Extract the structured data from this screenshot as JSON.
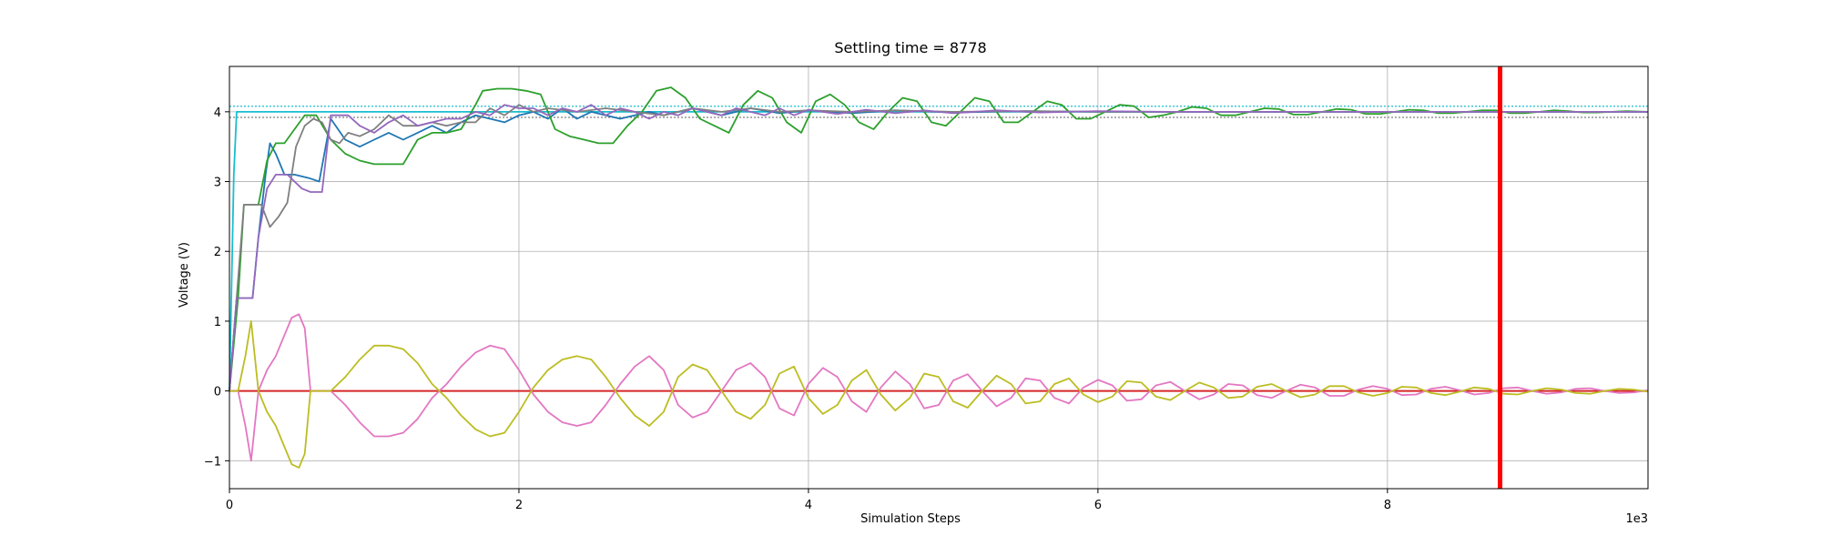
{
  "chart_data": {
    "type": "line",
    "title": "Settling time = 8778",
    "xlabel": "Simulation Steps",
    "ylabel": "Voltage (V)",
    "x_offset_label": "1e3",
    "xlim": [
      0,
      9800
    ],
    "ylim": [
      -1.4,
      4.65
    ],
    "xticks": [
      0,
      2,
      4,
      6,
      8
    ],
    "yticks": [
      -1,
      0,
      1,
      2,
      3,
      4
    ],
    "grid": true,
    "vertical_marker": {
      "x": 8778,
      "color": "#ff0000"
    },
    "reference_lines": [
      {
        "y": 4.08,
        "style": "dotted",
        "color": "#17becf"
      },
      {
        "y": 3.92,
        "style": "dotted",
        "color": "#7f7f7f"
      },
      {
        "y": 0.0,
        "style": "solid",
        "color": "#d62728"
      }
    ],
    "series": [
      {
        "color": "#17becf",
        "x": [
          0,
          30,
          50,
          9800
        ],
        "y": [
          0,
          3.1,
          4.0,
          4.0
        ]
      },
      {
        "color": "#1f77b4",
        "x": [
          0,
          50,
          90,
          160,
          200,
          250,
          280,
          320,
          380,
          450,
          550,
          620,
          700,
          800,
          900,
          1000,
          1100,
          1200,
          1300,
          1400,
          1500,
          1600,
          1700,
          1800,
          1900,
          2000,
          2100,
          2200,
          2300,
          2400,
          2500,
          2600,
          2700,
          2800,
          2900,
          3000,
          3200,
          3400,
          3600,
          3800,
          4000,
          4300,
          4600,
          5000,
          5500,
          6000,
          6500,
          7000,
          7500,
          8000,
          8500,
          9000,
          9500,
          9800
        ],
        "y": [
          0,
          1.33,
          1.33,
          1.33,
          2.2,
          3.1,
          3.55,
          3.4,
          3.1,
          3.1,
          3.05,
          3.0,
          3.9,
          3.6,
          3.5,
          3.6,
          3.7,
          3.6,
          3.7,
          3.8,
          3.7,
          3.85,
          3.95,
          3.9,
          3.85,
          3.95,
          4.0,
          3.9,
          4.05,
          3.9,
          4.0,
          3.95,
          3.9,
          3.95,
          4.0,
          3.95,
          4.05,
          3.95,
          4.05,
          3.98,
          4.02,
          3.98,
          4.02,
          3.99,
          4.01,
          4.0,
          4.0,
          4.0,
          4.0,
          4.0,
          4.0,
          4.0,
          4.0,
          4.0
        ]
      },
      {
        "color": "#2ca02c",
        "x": [
          0,
          60,
          100,
          140,
          200,
          260,
          320,
          380,
          450,
          520,
          600,
          700,
          800,
          900,
          1000,
          1100,
          1200,
          1300,
          1400,
          1500,
          1600,
          1700,
          1750,
          1850,
          1950,
          2050,
          2150,
          2250,
          2350,
          2450,
          2550,
          2650,
          2750,
          2850,
          2950,
          3050,
          3150,
          3250,
          3350,
          3450,
          3550,
          3650,
          3750,
          3850,
          3950,
          4050,
          4150,
          4250,
          4350,
          4450,
          4550,
          4650,
          4750,
          4850,
          4950,
          5050,
          5150,
          5250,
          5350,
          5450,
          5550,
          5650,
          5750,
          5850,
          5950,
          6050,
          6150,
          6250,
          6350,
          6450,
          6550,
          6650,
          6750,
          6850,
          6950,
          7050,
          7150,
          7250,
          7350,
          7450,
          7550,
          7650,
          7750,
          7850,
          7950,
          8050,
          8150,
          8250,
          8350,
          8450,
          8550,
          8650,
          8750,
          8850,
          8950,
          9050,
          9150,
          9250,
          9350,
          9450,
          9550,
          9650,
          9800
        ],
        "y": [
          0,
          1.33,
          2.67,
          2.67,
          2.67,
          3.3,
          3.55,
          3.55,
          3.75,
          3.95,
          3.95,
          3.6,
          3.4,
          3.3,
          3.25,
          3.25,
          3.25,
          3.6,
          3.7,
          3.7,
          3.75,
          4.1,
          4.3,
          4.33,
          4.33,
          4.3,
          4.25,
          3.75,
          3.65,
          3.6,
          3.55,
          3.55,
          3.8,
          4.0,
          4.3,
          4.35,
          4.2,
          3.9,
          3.8,
          3.7,
          4.1,
          4.3,
          4.2,
          3.85,
          3.7,
          4.15,
          4.25,
          4.1,
          3.85,
          3.75,
          4.0,
          4.2,
          4.15,
          3.85,
          3.8,
          4.0,
          4.2,
          4.15,
          3.85,
          3.85,
          4.0,
          4.15,
          4.1,
          3.9,
          3.9,
          4.0,
          4.1,
          4.08,
          3.92,
          3.95,
          4.0,
          4.07,
          4.05,
          3.95,
          3.95,
          4.0,
          4.05,
          4.04,
          3.96,
          3.96,
          4.0,
          4.04,
          4.03,
          3.97,
          3.97,
          4.0,
          4.03,
          4.02,
          3.98,
          3.98,
          4.0,
          4.02,
          4.02,
          3.98,
          3.98,
          4.0,
          4.02,
          4.01,
          3.99,
          3.99,
          4.0,
          4.01,
          4.0
        ]
      },
      {
        "color": "#7f7f7f",
        "x": [
          0,
          50,
          100,
          160,
          220,
          280,
          340,
          400,
          460,
          520,
          580,
          640,
          700,
          760,
          820,
          900,
          1000,
          1100,
          1200,
          1300,
          1400,
          1500,
          1600,
          1700,
          1800,
          1900,
          2000,
          2100,
          2200,
          2400,
          2600,
          2800,
          3000,
          3200,
          3400,
          3600,
          3800,
          4000,
          4300,
          4600,
          5000,
          5500,
          6000,
          6500,
          7000,
          7500,
          8000,
          8500,
          9000,
          9500,
          9800
        ],
        "y": [
          0,
          1.33,
          2.67,
          2.67,
          2.67,
          2.35,
          2.5,
          2.7,
          3.5,
          3.8,
          3.9,
          3.85,
          3.6,
          3.55,
          3.7,
          3.65,
          3.75,
          3.95,
          3.8,
          3.8,
          3.85,
          3.8,
          3.85,
          3.85,
          4.05,
          3.95,
          4.1,
          4.0,
          4.05,
          4.0,
          4.05,
          4.0,
          3.95,
          4.05,
          4.0,
          4.05,
          4.0,
          4.02,
          4.0,
          4.02,
          4.0,
          4.01,
          4.0,
          4.0,
          4.0,
          4.0,
          4.0,
          4.0,
          4.0,
          4.0,
          4.0
        ]
      },
      {
        "color": "#9467bd",
        "x": [
          0,
          50,
          100,
          160,
          200,
          260,
          320,
          400,
          500,
          560,
          640,
          700,
          760,
          820,
          900,
          1000,
          1100,
          1200,
          1300,
          1400,
          1500,
          1600,
          1700,
          1800,
          1900,
          2000,
          2100,
          2200,
          2300,
          2400,
          2500,
          2600,
          2700,
          2800,
          2900,
          3000,
          3100,
          3200,
          3300,
          3400,
          3500,
          3600,
          3700,
          3800,
          3900,
          4000,
          4200,
          4400,
          4600,
          4800,
          5000,
          5300,
          5600,
          6000,
          6500,
          7000,
          7500,
          8000,
          8500,
          9000,
          9500,
          9800
        ],
        "y": [
          0,
          1.33,
          1.33,
          1.33,
          2.2,
          2.9,
          3.1,
          3.1,
          2.9,
          2.85,
          2.85,
          3.95,
          3.95,
          3.95,
          3.8,
          3.7,
          3.85,
          3.95,
          3.8,
          3.85,
          3.9,
          3.9,
          4.0,
          3.95,
          4.1,
          4.05,
          4.05,
          3.95,
          4.05,
          4.0,
          4.1,
          3.95,
          4.05,
          4.0,
          3.9,
          4.0,
          3.95,
          4.05,
          4.0,
          3.95,
          4.05,
          4.0,
          3.95,
          4.05,
          3.95,
          4.03,
          3.97,
          4.03,
          3.98,
          4.02,
          3.98,
          4.02,
          3.99,
          4.01,
          4.0,
          4.0,
          4.0,
          4.0,
          4.0,
          4.0,
          4.0,
          4.0
        ]
      },
      {
        "color": "#e377c2",
        "x": [
          0,
          60,
          110,
          150,
          200,
          260,
          320,
          380,
          430,
          480,
          520,
          560,
          620,
          700,
          800,
          900,
          1000,
          1100,
          1200,
          1300,
          1400,
          1500,
          1600,
          1700,
          1800,
          1900,
          2000,
          2100,
          2200,
          2300,
          2400,
          2500,
          2600,
          2700,
          2800,
          2900,
          3000,
          3100,
          3200,
          3300,
          3400,
          3500,
          3600,
          3700,
          3800,
          3900,
          4000,
          4100,
          4200,
          4300,
          4400,
          4500,
          4600,
          4700,
          4800,
          4900,
          5000,
          5100,
          5200,
          5300,
          5400,
          5500,
          5600,
          5700,
          5800,
          5900,
          6000,
          6100,
          6200,
          6300,
          6400,
          6500,
          6600,
          6700,
          6800,
          6900,
          7000,
          7100,
          7200,
          7300,
          7400,
          7500,
          7600,
          7700,
          7800,
          7900,
          8000,
          8100,
          8200,
          8300,
          8400,
          8500,
          8600,
          8700,
          8800,
          8900,
          9000,
          9100,
          9200,
          9300,
          9400,
          9500,
          9600,
          9700,
          9800
        ],
        "y": [
          0,
          0,
          -0.5,
          -1.0,
          0,
          0.3,
          0.5,
          0.8,
          1.05,
          1.1,
          0.9,
          0,
          0,
          0,
          -0.2,
          -0.45,
          -0.65,
          -0.65,
          -0.6,
          -0.4,
          -0.1,
          0.1,
          0.35,
          0.55,
          0.65,
          0.6,
          0.3,
          -0.05,
          -0.3,
          -0.45,
          -0.5,
          -0.45,
          -0.2,
          0.1,
          0.35,
          0.5,
          0.3,
          -0.2,
          -0.38,
          -0.3,
          0.0,
          0.3,
          0.4,
          0.2,
          -0.25,
          -0.35,
          0.1,
          0.33,
          0.2,
          -0.15,
          -0.3,
          0.05,
          0.28,
          0.1,
          -0.25,
          -0.2,
          0.15,
          0.24,
          0.0,
          -0.22,
          -0.1,
          0.18,
          0.15,
          -0.1,
          -0.18,
          0.05,
          0.16,
          0.08,
          -0.14,
          -0.12,
          0.08,
          0.13,
          0.0,
          -0.12,
          -0.05,
          0.1,
          0.08,
          -0.06,
          -0.1,
          0.0,
          0.09,
          0.05,
          -0.07,
          -0.07,
          0.02,
          0.07,
          0.03,
          -0.06,
          -0.05,
          0.03,
          0.06,
          0.01,
          -0.05,
          -0.03,
          0.04,
          0.05,
          0.0,
          -0.04,
          -0.02,
          0.03,
          0.04,
          0.0,
          -0.03,
          -0.02,
          0.01
        ]
      },
      {
        "color": "#bcbd22",
        "x": [
          0,
          60,
          110,
          150,
          200,
          260,
          320,
          380,
          430,
          480,
          520,
          560,
          620,
          700,
          800,
          900,
          1000,
          1100,
          1200,
          1300,
          1400,
          1500,
          1600,
          1700,
          1800,
          1900,
          2000,
          2100,
          2200,
          2300,
          2400,
          2500,
          2600,
          2700,
          2800,
          2900,
          3000,
          3100,
          3200,
          3300,
          3400,
          3500,
          3600,
          3700,
          3800,
          3900,
          4000,
          4100,
          4200,
          4300,
          4400,
          4500,
          4600,
          4700,
          4800,
          4900,
          5000,
          5100,
          5200,
          5300,
          5400,
          5500,
          5600,
          5700,
          5800,
          5900,
          6000,
          6100,
          6200,
          6300,
          6400,
          6500,
          6600,
          6700,
          6800,
          6900,
          7000,
          7100,
          7200,
          7300,
          7400,
          7500,
          7600,
          7700,
          7800,
          7900,
          8000,
          8100,
          8200,
          8300,
          8400,
          8500,
          8600,
          8700,
          8800,
          8900,
          9000,
          9100,
          9200,
          9300,
          9400,
          9500,
          9600,
          9700,
          9800
        ],
        "y": [
          0,
          0,
          0.5,
          1.0,
          0,
          -0.3,
          -0.5,
          -0.8,
          -1.05,
          -1.1,
          -0.9,
          0,
          0,
          0,
          0.2,
          0.45,
          0.65,
          0.65,
          0.6,
          0.4,
          0.1,
          -0.1,
          -0.35,
          -0.55,
          -0.65,
          -0.6,
          -0.3,
          0.05,
          0.3,
          0.45,
          0.5,
          0.45,
          0.2,
          -0.1,
          -0.35,
          -0.5,
          -0.3,
          0.2,
          0.38,
          0.3,
          0.0,
          -0.3,
          -0.4,
          -0.2,
          0.25,
          0.35,
          -0.1,
          -0.33,
          -0.2,
          0.15,
          0.3,
          -0.05,
          -0.28,
          -0.1,
          0.25,
          0.2,
          -0.15,
          -0.24,
          0.0,
          0.22,
          0.1,
          -0.18,
          -0.15,
          0.1,
          0.18,
          -0.05,
          -0.16,
          -0.08,
          0.14,
          0.12,
          -0.08,
          -0.13,
          0.0,
          0.12,
          0.05,
          -0.1,
          -0.08,
          0.06,
          0.1,
          0.0,
          -0.09,
          -0.05,
          0.07,
          0.07,
          -0.02,
          -0.07,
          -0.03,
          0.06,
          0.05,
          -0.03,
          -0.06,
          -0.01,
          0.05,
          0.03,
          -0.04,
          -0.05,
          0.0,
          0.04,
          0.02,
          -0.03,
          -0.04,
          0.0,
          0.03,
          0.02,
          -0.01
        ]
      }
    ]
  }
}
